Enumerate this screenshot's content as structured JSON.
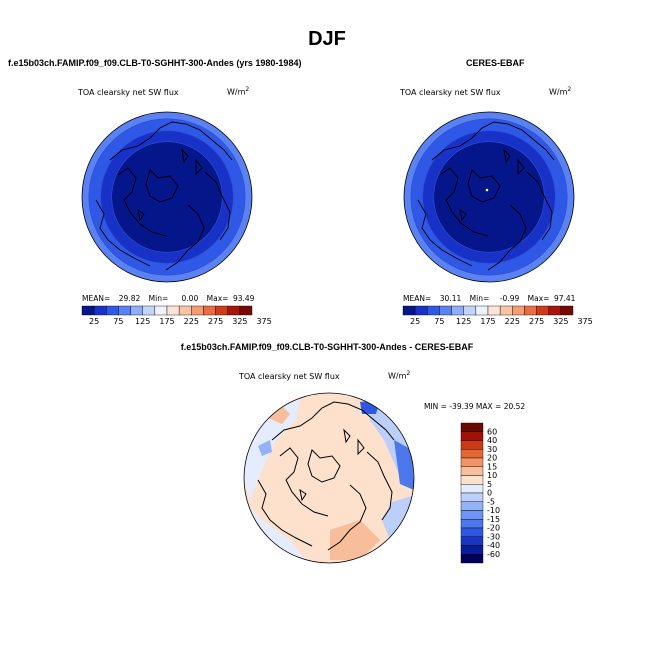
{
  "title": "DJF",
  "case_name": "f.e15b03ch.FAMIP.f09_f09.CLB-T0-SGHHT-300-Andes (yrs 1980-1984)",
  "obs_name": "CERES-EBAF",
  "diff_title": "f.e15b03ch.FAMIP.f09_f09.CLB-T0-SGHHT-300-Andes - CERES-EBAF",
  "variable": "TOA clearsky net SW flux",
  "units_base": "W/m",
  "units_exp": "2",
  "colors": {
    "mean_colorbar": [
      "#05158a",
      "#1832c8",
      "#2f58e6",
      "#5b82f2",
      "#8fadf8",
      "#c2d4fb",
      "#eef2fd",
      "#fde4d6",
      "#fbc3a3",
      "#f69c72",
      "#ea6c43",
      "#d23b1a",
      "#a9150a",
      "#760a03"
    ],
    "diff_colorbar": [
      "#00005a",
      "#0b1d96",
      "#1a37c4",
      "#2f57e1",
      "#4d78ec",
      "#6e95f2",
      "#94b2f6",
      "#bbcffa",
      "#e4ecfd",
      "#fde1cd",
      "#f8bd9a",
      "#f29468",
      "#e56736",
      "#cc3a14",
      "#9e1305",
      "#6b0a01"
    ]
  },
  "chart_data": [
    {
      "type": "heatmap",
      "panel": "model",
      "title": "TOA clearsky net SW flux",
      "projection": "north polar stereographic",
      "units": "W/m2",
      "stats": {
        "mean_label": "MEAN=",
        "mean": "29.82",
        "min_label": "Min=",
        "min": "0.00",
        "max_label": "Max=",
        "max": "93.49"
      },
      "colorbar_ticks": [
        "25",
        "75",
        "125",
        "175",
        "225",
        "275",
        "325",
        "375"
      ],
      "field_rings": [
        {
          "outer_frac": 1.0,
          "value": 80
        },
        {
          "outer_frac": 0.92,
          "value": 60
        },
        {
          "outer_frac": 0.78,
          "value": 35
        },
        {
          "outer_frac": 0.65,
          "value": 10
        }
      ]
    },
    {
      "type": "heatmap",
      "panel": "obs",
      "title": "TOA clearsky net SW flux",
      "projection": "north polar stereographic",
      "units": "W/m2",
      "stats": {
        "mean_label": "MEAN=",
        "mean": "30.11",
        "min_label": "Min=",
        "min": "-0.99",
        "max_label": "Max=",
        "max": "97.41"
      },
      "colorbar_ticks": [
        "25",
        "75",
        "125",
        "175",
        "225",
        "275",
        "325",
        "375"
      ],
      "field_rings": [
        {
          "outer_frac": 1.0,
          "value": 80
        },
        {
          "outer_frac": 0.92,
          "value": 60
        },
        {
          "outer_frac": 0.78,
          "value": 35
        },
        {
          "outer_frac": 0.65,
          "value": 10
        }
      ]
    },
    {
      "type": "heatmap",
      "panel": "difference",
      "title": "TOA clearsky net SW flux",
      "projection": "north polar stereographic",
      "units": "W/m2",
      "min_max_text": "MIN = -39.39 MAX =  20.52",
      "colorbar_ticks": [
        "60",
        "40",
        "30",
        "20",
        "15",
        "10",
        "5",
        "0",
        "-5",
        "-10",
        "-15",
        "-20",
        "-30",
        "-40",
        "-60"
      ],
      "dominant_value": 2
    }
  ]
}
